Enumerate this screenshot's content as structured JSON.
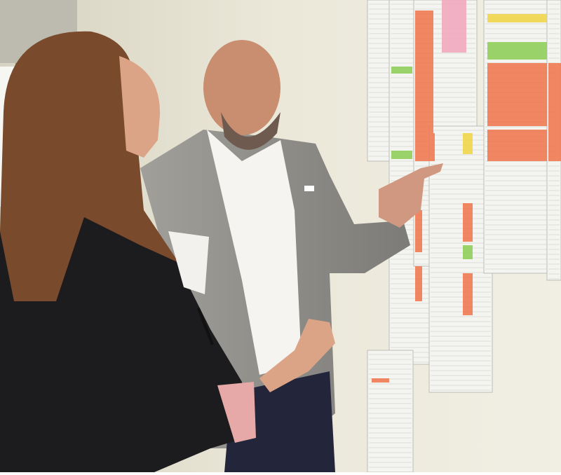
{
  "photo": {
    "colors": {
      "wall": "#e9e6d6",
      "wall_shadow": "#cfccb8",
      "paper": "#f4f4f0",
      "orange_cells": "#ef7a52",
      "green_cells": "#8fcf5a",
      "yellow_cells": "#f0d64a",
      "pink_cell": "#f2a9c0",
      "suit_grey": "#8e8c88",
      "shirt_white": "#f5f4f1",
      "blazer_black": "#1c1b1d",
      "hair_brown": "#7a4a2c",
      "skin": "#d9a083"
    }
  }
}
